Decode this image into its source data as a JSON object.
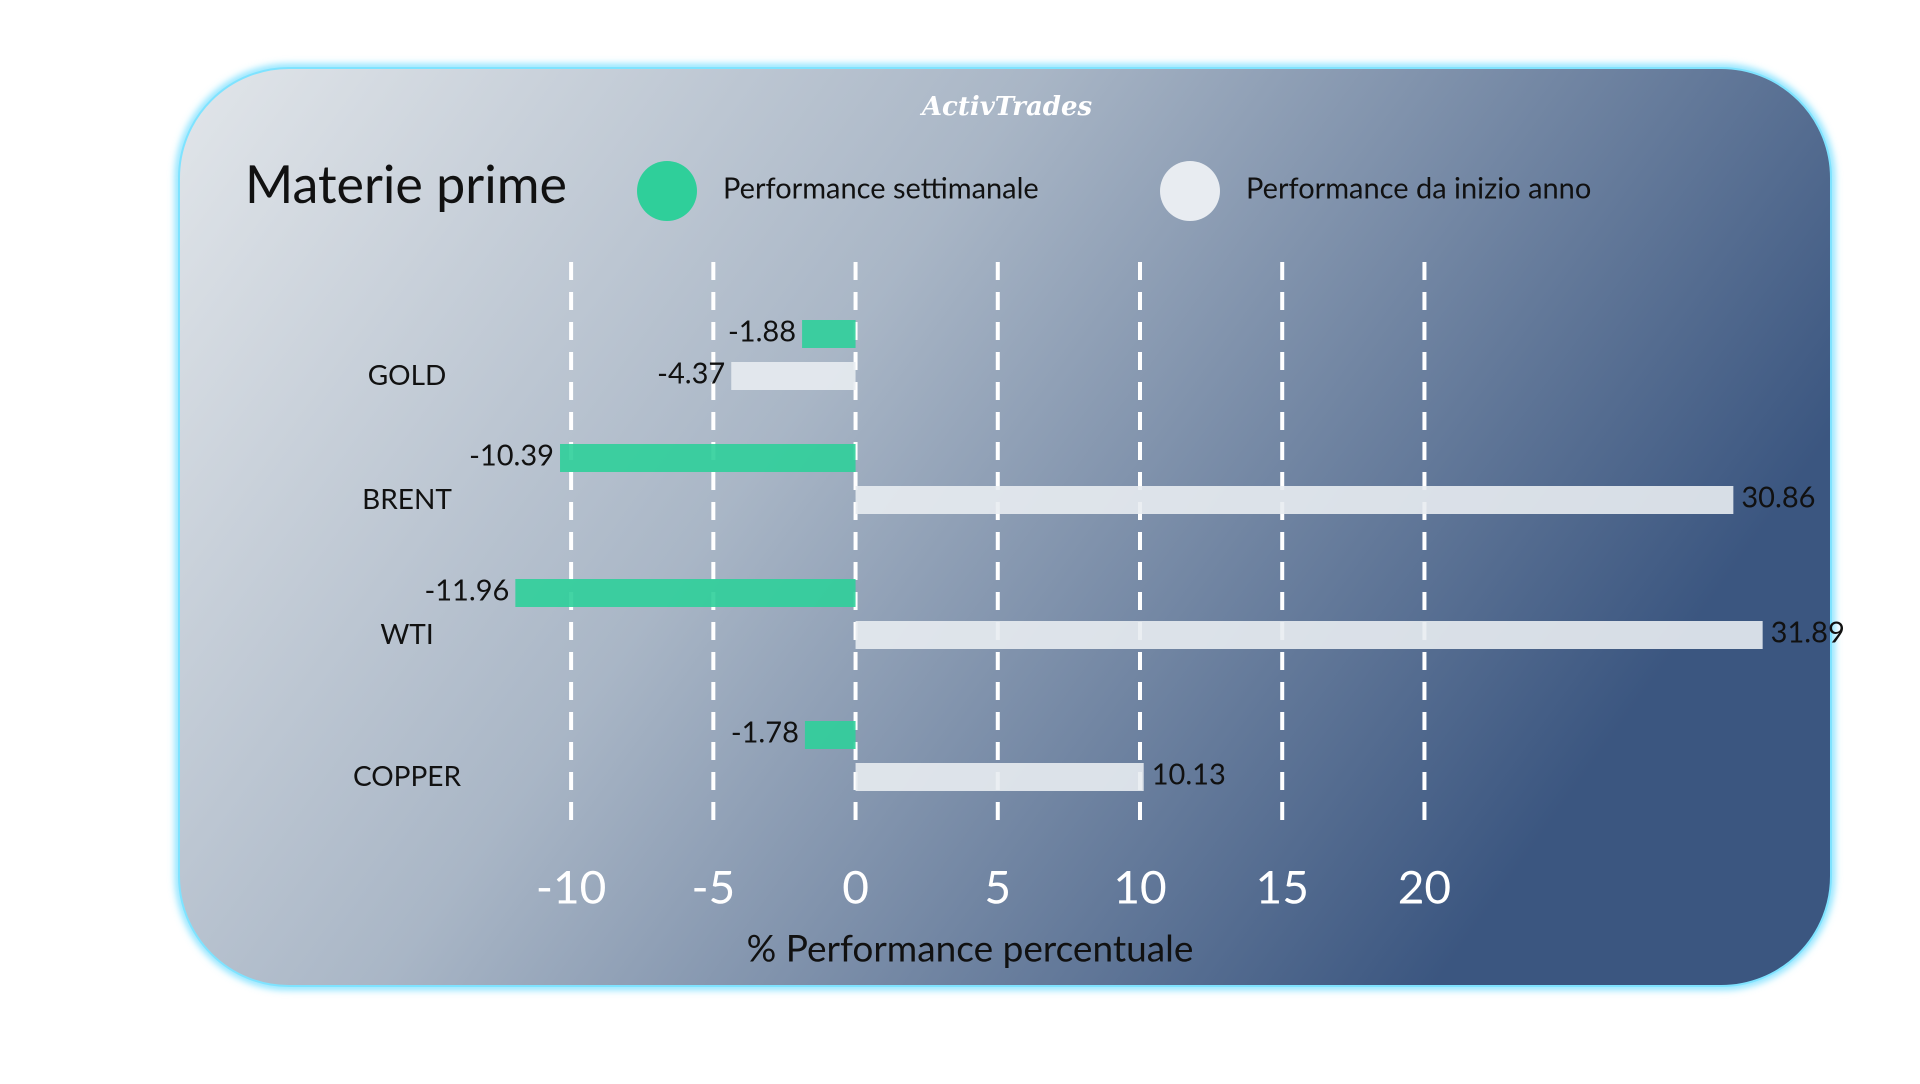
{
  "brand": "ActivTrades",
  "chart_data": {
    "type": "hbar",
    "title": "Materie prime",
    "categories": [
      "GOLD",
      "BRENT",
      "WTI",
      "COPPER"
    ],
    "series": [
      {
        "name": "Performance settimanale",
        "color": "#2fcf9a",
        "values": [
          -1.88,
          -10.39,
          -11.96,
          -1.78
        ]
      },
      {
        "name": "Performance da inizio anno",
        "color": "#e8ecf1",
        "values": [
          -4.37,
          30.86,
          31.89,
          10.13
        ]
      }
    ],
    "xlabel": "% Performance percentuale",
    "xlim": [
      -12.5,
      32.5
    ],
    "xticks": [
      -10,
      -5,
      0,
      5,
      10,
      15,
      20
    ],
    "grid": true,
    "legend": "top"
  }
}
